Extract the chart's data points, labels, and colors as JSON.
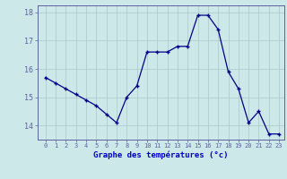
{
  "x": [
    0,
    1,
    2,
    3,
    4,
    5,
    6,
    7,
    8,
    9,
    10,
    11,
    12,
    13,
    14,
    15,
    16,
    17,
    18,
    19,
    20,
    21,
    22,
    23
  ],
  "y": [
    15.7,
    15.5,
    15.3,
    15.1,
    14.9,
    14.7,
    14.4,
    14.1,
    15.0,
    15.4,
    16.6,
    16.6,
    16.6,
    16.8,
    16.8,
    17.9,
    17.9,
    17.4,
    15.9,
    15.3,
    14.1,
    14.5,
    13.7,
    13.7
  ],
  "ylim": [
    13.5,
    18.25
  ],
  "yticks": [
    14,
    15,
    16,
    17,
    18
  ],
  "xlabel": "Graphe des températures (°c)",
  "line_color": "#00008b",
  "marker": "+",
  "bg_color": "#cce8e8",
  "grid_color": "#a8c8c8",
  "spine_color": "#6060a0",
  "label_color": "#0000cc",
  "tick_color": "#6060a0",
  "xlim": [
    -0.8,
    23.5
  ]
}
